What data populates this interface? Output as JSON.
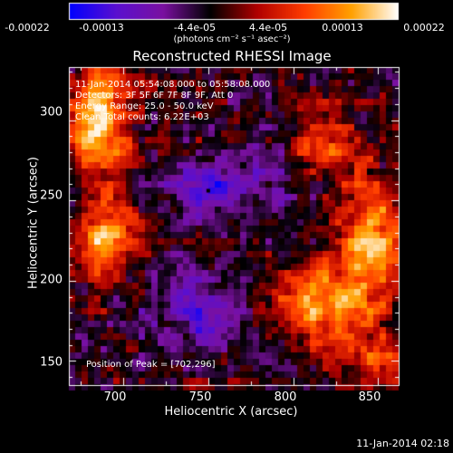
{
  "chart_data": {
    "type": "heatmap",
    "title": "Reconstructed RHESSI Image",
    "xlabel": "Heliocentric X (arcsec)",
    "ylabel": "Heliocentric Y (arcsec)",
    "xlim": [
      668,
      862
    ],
    "ylim": [
      135,
      333
    ],
    "x_ticks": [
      "700",
      "750",
      "800",
      "850"
    ],
    "y_ticks": [
      "300",
      "250",
      "200",
      "150"
    ],
    "colorbar": {
      "ticks": [
        "-0.00022",
        "-0.00013",
        "-4.4e-05",
        "4.4e-05",
        "0.00013",
        "0.00022"
      ],
      "range": [
        -0.00022,
        0.00022
      ],
      "unit_label": "(photons cm⁻² s⁻¹ asec⁻²)",
      "colormap": [
        "#0000ff",
        "#5a0fcf",
        "#7a10a0",
        "#000000",
        "#b00000",
        "#ff3c00",
        "#ffa000",
        "#ffffff"
      ]
    },
    "annotations": [
      "11-Jan-2014 05:54:08.000 to 05:58:08.000",
      "Detectors: 3F 5F 6F 7F 8F 9F, Att 0",
      "Energy Range: 25.0 - 50.0 keV",
      "Clean     Total counts: 6.22E+03"
    ],
    "peak_label": "Position of Peak = [702,296]",
    "peak_position": [
      702,
      296
    ],
    "min_marker": [
      750,
      256
    ]
  },
  "footer": {
    "timestamp": "11-Jan-2014 02:18"
  }
}
